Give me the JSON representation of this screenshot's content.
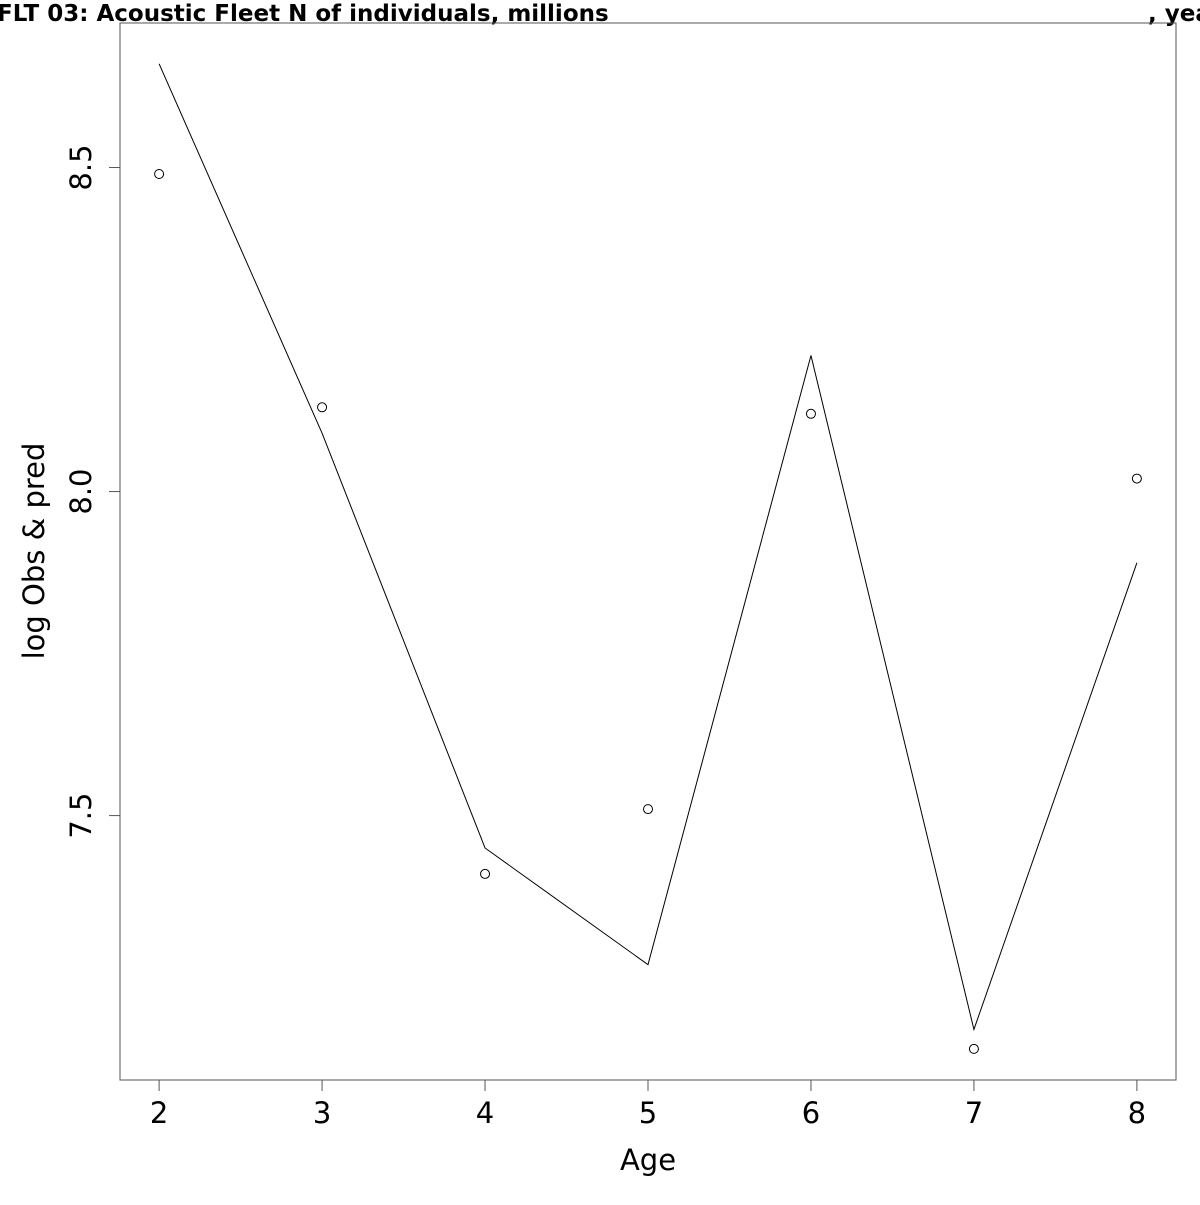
{
  "chart_data": {
    "type": "line",
    "title": "FLT 03: Acoustic Fleet   N of individuals, millions",
    "title_suffix": ", yea",
    "xlabel": "Age",
    "ylabel": "log Obs & pred",
    "x": [
      2,
      3,
      4,
      5,
      6,
      7,
      8
    ],
    "x_ticks": [
      "2",
      "3",
      "4",
      "5",
      "6",
      "7",
      "8"
    ],
    "y_ticks": [
      "7.5",
      "8.0",
      "8.5"
    ],
    "y_tick_values": [
      7.5,
      8.0,
      8.5
    ],
    "xlim": [
      1.76,
      8.24
    ],
    "ylim": [
      7.092,
      8.723
    ],
    "grid": false,
    "series": [
      {
        "kind": "line",
        "values": [
          8.66,
          8.09,
          7.45,
          7.27,
          8.21,
          7.17,
          7.89
        ]
      },
      {
        "kind": "points",
        "marker": "open-circle",
        "values": [
          8.49,
          8.13,
          7.41,
          7.51,
          8.12,
          7.14,
          8.02
        ]
      }
    ],
    "colors": {
      "line": "#000000",
      "points": "#000000",
      "frame": "#555555"
    }
  }
}
